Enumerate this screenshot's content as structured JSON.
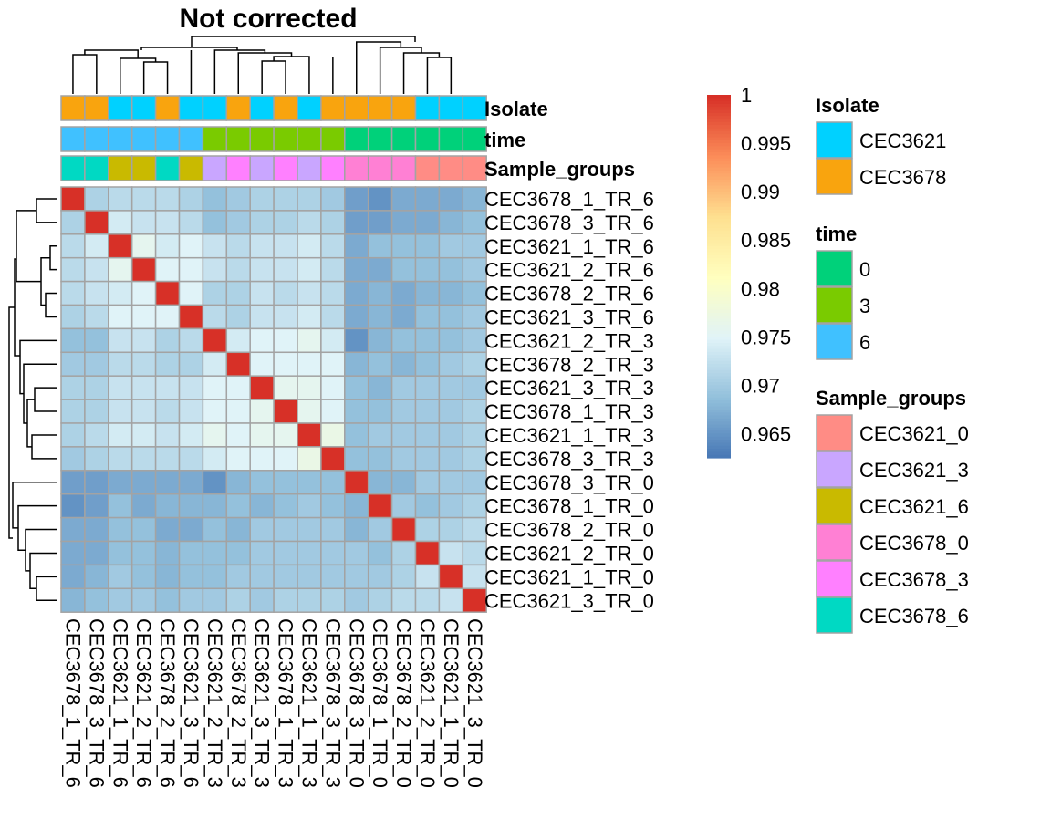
{
  "chart_data": {
    "type": "heatmap",
    "title": "Not corrected",
    "samples": [
      "CEC3678_1_TR_6",
      "CEC3678_3_TR_6",
      "CEC3621_1_TR_6",
      "CEC3621_2_TR_6",
      "CEC3678_2_TR_6",
      "CEC3621_3_TR_6",
      "CEC3621_2_TR_3",
      "CEC3678_2_TR_3",
      "CEC3621_3_TR_3",
      "CEC3678_1_TR_3",
      "CEC3621_1_TR_3",
      "CEC3678_3_TR_3",
      "CEC3678_3_TR_0",
      "CEC3678_1_TR_0",
      "CEC3678_2_TR_0",
      "CEC3621_2_TR_0",
      "CEC3621_1_TR_0",
      "CEC3621_3_TR_0"
    ],
    "annotation_rows": [
      {
        "name": "Isolate",
        "values": [
          "CEC3678",
          "CEC3678",
          "CEC3621",
          "CEC3621",
          "CEC3678",
          "CEC3621",
          "CEC3621",
          "CEC3678",
          "CEC3621",
          "CEC3678",
          "CEC3621",
          "CEC3678",
          "CEC3678",
          "CEC3678",
          "CEC3678",
          "CEC3621",
          "CEC3621",
          "CEC3621"
        ]
      },
      {
        "name": "time",
        "values": [
          "6",
          "6",
          "6",
          "6",
          "6",
          "6",
          "3",
          "3",
          "3",
          "3",
          "3",
          "3",
          "0",
          "0",
          "0",
          "0",
          "0",
          "0"
        ]
      },
      {
        "name": "Sample_groups",
        "values": [
          "CEC3678_6",
          "CEC3678_6",
          "CEC3621_6",
          "CEC3621_6",
          "CEC3678_6",
          "CEC3621_6",
          "CEC3621_3",
          "CEC3678_3",
          "CEC3621_3",
          "CEC3678_3",
          "CEC3621_3",
          "CEC3678_3",
          "CEC3678_0",
          "CEC3678_0",
          "CEC3678_0",
          "CEC3621_0",
          "CEC3621_0",
          "CEC3621_0"
        ]
      }
    ],
    "matrix": [
      [
        1,
        0.971,
        0.972,
        0.972,
        0.972,
        0.971,
        0.969,
        0.97,
        0.971,
        0.971,
        0.971,
        0.97,
        0.966,
        0.965,
        0.967,
        0.967,
        0.967,
        0.968
      ],
      [
        0.971,
        1,
        0.974,
        0.973,
        0.973,
        0.972,
        0.969,
        0.97,
        0.971,
        0.971,
        0.972,
        0.971,
        0.966,
        0.966,
        0.967,
        0.967,
        0.968,
        0.969
      ],
      [
        0.972,
        0.974,
        1,
        0.976,
        0.974,
        0.975,
        0.973,
        0.972,
        0.973,
        0.973,
        0.974,
        0.972,
        0.967,
        0.969,
        0.969,
        0.969,
        0.97,
        0.97
      ],
      [
        0.972,
        0.973,
        0.976,
        1,
        0.975,
        0.975,
        0.973,
        0.972,
        0.973,
        0.973,
        0.974,
        0.972,
        0.967,
        0.967,
        0.969,
        0.969,
        0.969,
        0.97
      ],
      [
        0.972,
        0.973,
        0.974,
        0.975,
        1,
        0.975,
        0.971,
        0.971,
        0.973,
        0.972,
        0.973,
        0.972,
        0.967,
        0.968,
        0.967,
        0.968,
        0.968,
        0.969
      ],
      [
        0.971,
        0.972,
        0.975,
        0.975,
        0.975,
        1,
        0.972,
        0.971,
        0.973,
        0.973,
        0.974,
        0.972,
        0.967,
        0.968,
        0.967,
        0.969,
        0.969,
        0.97
      ],
      [
        0.969,
        0.969,
        0.973,
        0.973,
        0.971,
        0.972,
        1,
        0.974,
        0.975,
        0.975,
        0.976,
        0.974,
        0.965,
        0.968,
        0.969,
        0.969,
        0.969,
        0.97
      ],
      [
        0.97,
        0.97,
        0.972,
        0.972,
        0.971,
        0.971,
        0.974,
        1,
        0.975,
        0.975,
        0.975,
        0.975,
        0.968,
        0.969,
        0.968,
        0.969,
        0.97,
        0.971
      ],
      [
        0.971,
        0.971,
        0.973,
        0.973,
        0.973,
        0.973,
        0.975,
        0.975,
        1,
        0.976,
        0.976,
        0.975,
        0.969,
        0.968,
        0.97,
        0.97,
        0.97,
        0.97
      ],
      [
        0.971,
        0.971,
        0.973,
        0.973,
        0.972,
        0.973,
        0.975,
        0.975,
        0.976,
        1,
        0.976,
        0.975,
        0.969,
        0.969,
        0.97,
        0.97,
        0.97,
        0.971
      ],
      [
        0.971,
        0.972,
        0.974,
        0.974,
        0.973,
        0.974,
        0.976,
        0.975,
        0.976,
        0.976,
        1,
        0.977,
        0.969,
        0.97,
        0.97,
        0.97,
        0.97,
        0.971
      ],
      [
        0.97,
        0.971,
        0.972,
        0.972,
        0.972,
        0.972,
        0.974,
        0.975,
        0.975,
        0.975,
        0.977,
        1,
        0.969,
        0.969,
        0.97,
        0.97,
        0.97,
        0.971
      ],
      [
        0.966,
        0.966,
        0.967,
        0.967,
        0.967,
        0.967,
        0.965,
        0.968,
        0.969,
        0.969,
        0.969,
        0.969,
        1,
        0.968,
        0.968,
        0.97,
        0.97,
        0.97
      ],
      [
        0.965,
        0.966,
        0.969,
        0.967,
        0.968,
        0.968,
        0.968,
        0.969,
        0.968,
        0.969,
        0.97,
        0.969,
        0.968,
        1,
        0.97,
        0.969,
        0.97,
        0.971
      ],
      [
        0.967,
        0.967,
        0.969,
        0.969,
        0.967,
        0.967,
        0.969,
        0.968,
        0.97,
        0.97,
        0.97,
        0.97,
        0.968,
        0.97,
        1,
        0.971,
        0.971,
        0.972
      ],
      [
        0.967,
        0.967,
        0.969,
        0.969,
        0.968,
        0.969,
        0.969,
        0.969,
        0.97,
        0.97,
        0.97,
        0.97,
        0.97,
        0.969,
        0.971,
        1,
        0.973,
        0.972
      ],
      [
        0.967,
        0.968,
        0.97,
        0.969,
        0.968,
        0.969,
        0.969,
        0.97,
        0.97,
        0.97,
        0.97,
        0.97,
        0.97,
        0.97,
        0.971,
        0.973,
        1,
        0.973
      ],
      [
        0.968,
        0.969,
        0.97,
        0.97,
        0.969,
        0.97,
        0.97,
        0.971,
        0.97,
        0.971,
        0.971,
        0.971,
        0.97,
        0.971,
        0.972,
        0.972,
        0.973,
        1
      ]
    ],
    "color_scale": {
      "range": [
        0.9625,
        1
      ],
      "stops": [
        "#4575B4",
        "#91BFDB",
        "#E0F3F8",
        "#FFFFBF",
        "#FEE090",
        "#FC8D59",
        "#D73027"
      ],
      "ticks": [
        {
          "value": 1,
          "label": "1"
        },
        {
          "value": 0.995,
          "label": "0.995"
        },
        {
          "value": 0.99,
          "label": "0.99"
        },
        {
          "value": 0.985,
          "label": "0.985"
        },
        {
          "value": 0.98,
          "label": "0.98"
        },
        {
          "value": 0.975,
          "label": "0.975"
        },
        {
          "value": 0.97,
          "label": "0.97"
        },
        {
          "value": 0.965,
          "label": "0.965"
        }
      ]
    },
    "legends": [
      {
        "title": "Isolate",
        "items": [
          {
            "label": "CEC3621",
            "color": "#00D1FF"
          },
          {
            "label": "CEC3678",
            "color": "#F9A40E"
          }
        ]
      },
      {
        "title": "time",
        "items": [
          {
            "label": "0",
            "color": "#00D17A"
          },
          {
            "label": "3",
            "color": "#7ACB00"
          },
          {
            "label": "6",
            "color": "#40C1FF"
          }
        ]
      },
      {
        "title": "Sample_groups",
        "items": [
          {
            "label": "CEC3621_0",
            "color": "#FF8C85"
          },
          {
            "label": "CEC3621_3",
            "color": "#C9A6FF"
          },
          {
            "label": "CEC3621_6",
            "color": "#C9BA00"
          },
          {
            "label": "CEC3678_0",
            "color": "#FF80D4"
          },
          {
            "label": "CEC3678_3",
            "color": "#FF80FF"
          },
          {
            "label": "CEC3678_6",
            "color": "#00D9C3"
          }
        ]
      }
    ]
  }
}
